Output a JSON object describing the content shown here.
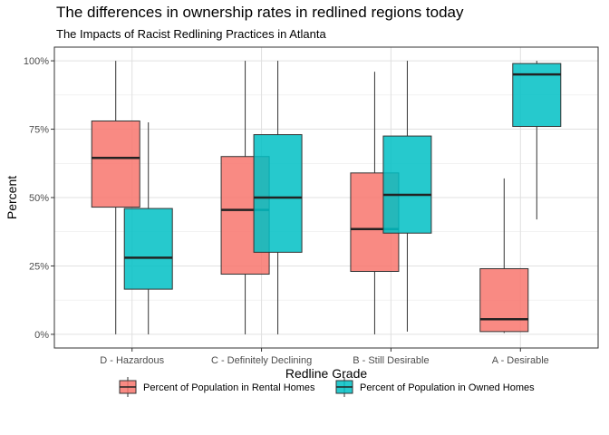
{
  "chart_data": {
    "type": "boxplot",
    "title": "The differences in ownership rates in redlined regions today",
    "subtitle": "The Impacts of Racist Redlining Practices in Atlanta",
    "xlabel": "Redline Grade",
    "ylabel": "Percent",
    "categories": [
      "D - Hazardous",
      "C - Definitely Declining",
      "B - Still Desirable",
      "A - Desirable"
    ],
    "ylim": [
      -0.05,
      1.05
    ],
    "yticks": [
      {
        "value": 0,
        "label": "0%"
      },
      {
        "value": 0.25,
        "label": "25%"
      },
      {
        "value": 0.5,
        "label": "50%"
      },
      {
        "value": 0.75,
        "label": "75%"
      },
      {
        "value": 1,
        "label": "100%"
      }
    ],
    "grid": true,
    "legend_position": "bottom",
    "series": [
      {
        "name": "Percent of Population in Rental Homes",
        "color": "#F8766D",
        "boxes": [
          {
            "min": 0.0,
            "q1": 0.465,
            "median": 0.645,
            "q3": 0.78,
            "max": 1.0
          },
          {
            "min": 0.0,
            "q1": 0.22,
            "median": 0.455,
            "q3": 0.65,
            "max": 1.0
          },
          {
            "min": 0.0,
            "q1": 0.23,
            "median": 0.385,
            "q3": 0.59,
            "max": 0.96
          },
          {
            "min": 0.005,
            "q1": 0.01,
            "median": 0.055,
            "q3": 0.24,
            "max": 0.57
          }
        ]
      },
      {
        "name": "Percent of Population in Owned Homes",
        "color": "#00BFC4",
        "boxes": [
          {
            "min": 0.0,
            "q1": 0.165,
            "median": 0.28,
            "q3": 0.46,
            "max": 0.775
          },
          {
            "min": 0.0,
            "q1": 0.3,
            "median": 0.5,
            "q3": 0.73,
            "max": 1.0
          },
          {
            "min": 0.01,
            "q1": 0.37,
            "median": 0.51,
            "q3": 0.725,
            "max": 1.0
          },
          {
            "min": 0.42,
            "q1": 0.76,
            "median": 0.95,
            "q3": 0.99,
            "max": 1.0
          }
        ]
      }
    ]
  }
}
